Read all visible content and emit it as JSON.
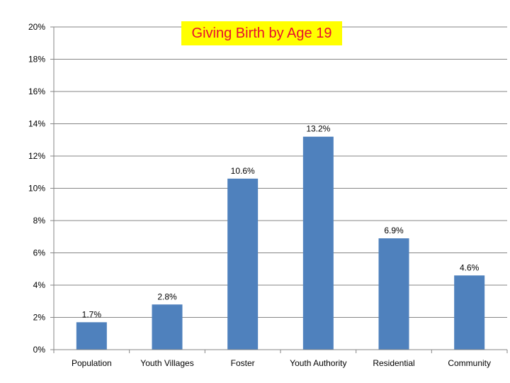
{
  "chart_data": {
    "type": "bar",
    "title": "Giving Birth by Age 19",
    "categories": [
      "Population",
      "Youth Villages",
      "Foster",
      "Youth Authority",
      "Residential",
      "Community"
    ],
    "values": [
      1.7,
      2.8,
      10.6,
      13.2,
      6.9,
      4.6
    ],
    "data_labels": [
      "1.7%",
      "2.8%",
      "10.6%",
      "13.2%",
      "6.9%",
      "4.6%"
    ],
    "y_ticks": [
      0,
      2,
      4,
      6,
      8,
      10,
      12,
      14,
      16,
      18,
      20
    ],
    "y_tick_labels": [
      "0%",
      "2%",
      "4%",
      "6%",
      "8%",
      "10%",
      "12%",
      "14%",
      "16%",
      "18%",
      "20%"
    ],
    "ylim": [
      0,
      20
    ],
    "xlabel": "",
    "ylabel": "",
    "grid": true,
    "legend": "none",
    "colors": {
      "bar": "#4f81bd",
      "grid": "#868686",
      "title_text": "#e8102e",
      "title_background": "#ffff00"
    }
  }
}
